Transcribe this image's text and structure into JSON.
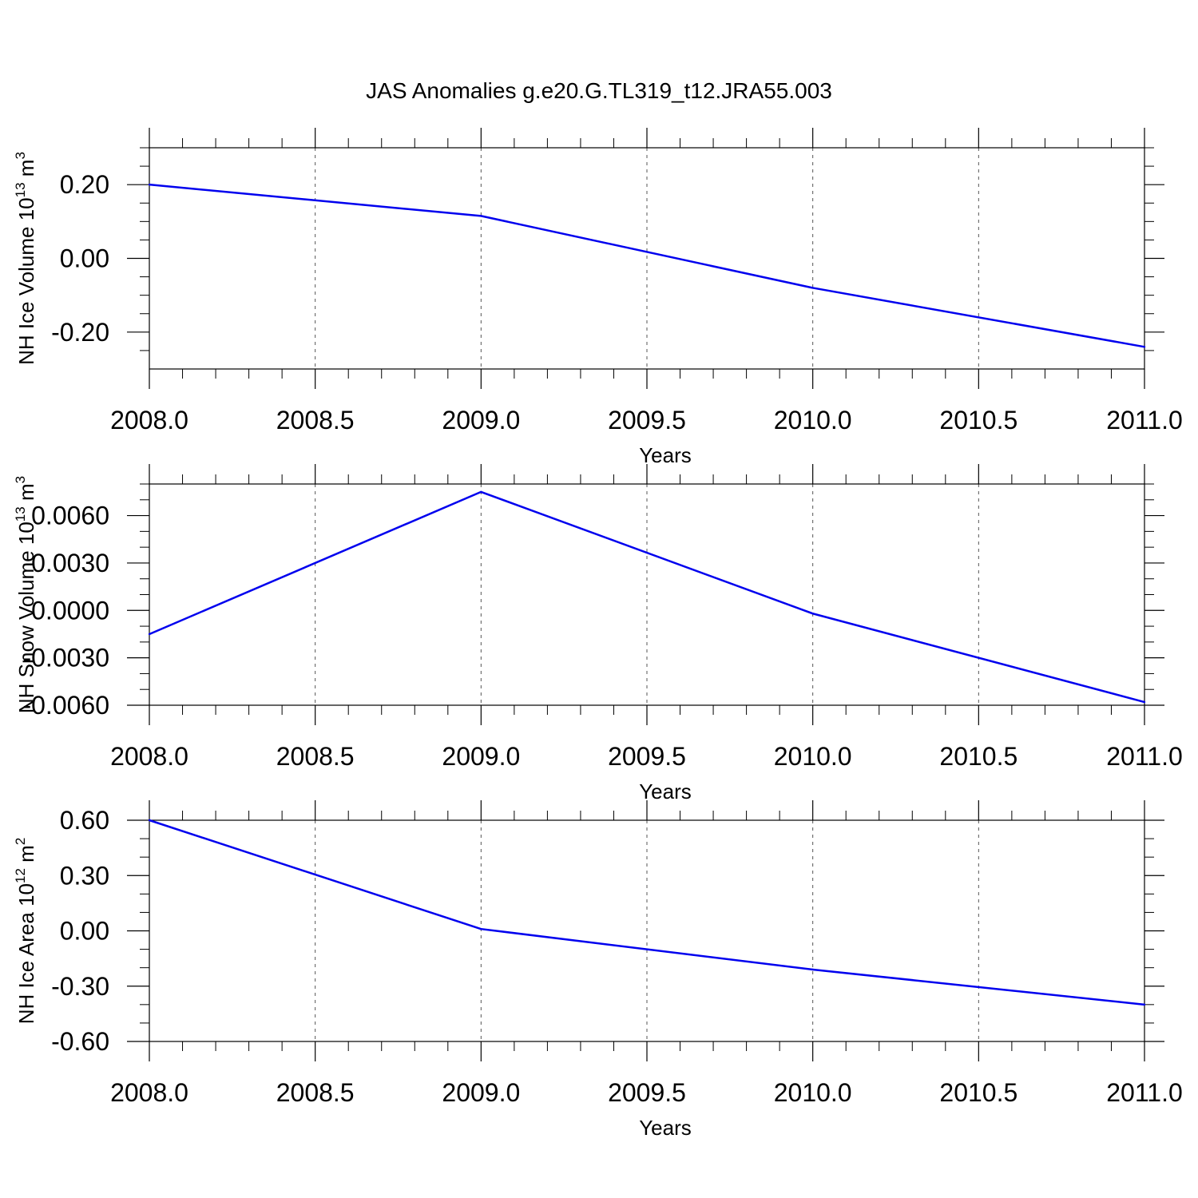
{
  "chart_data": {
    "title": "JAS Anomalies g.e20.G.TL319_t12.JRA55.003",
    "series_color": "#0000ee",
    "panels": [
      {
        "type": "line",
        "xlabel": "Years",
        "ylabel": {
          "main": "NH Ice Volume 10",
          "sup": "13",
          "unit": " m",
          "unit_sup": "3"
        },
        "x": [
          2008,
          2009,
          2010,
          2011
        ],
        "y": [
          0.2,
          0.115,
          -0.08,
          -0.24
        ],
        "xlim": [
          2008,
          2011
        ],
        "ylim": [
          -0.3,
          0.3
        ],
        "xticks": [
          2008.0,
          2008.5,
          2009.0,
          2009.5,
          2010.0,
          2010.5,
          2011.0
        ],
        "xtick_labels": [
          "2008.0",
          "2008.5",
          "2009.0",
          "2009.5",
          "2010.0",
          "2010.5",
          "2011.0"
        ],
        "yticks": [
          -0.2,
          0.0,
          0.2
        ],
        "ytick_labels": [
          "-0.20",
          "0.00",
          "0.20"
        ],
        "yminor_step": 0.05
      },
      {
        "type": "line",
        "xlabel": "Years",
        "ylabel": {
          "main": "NH Snow Volume 10",
          "sup": "13",
          "unit": " m",
          "unit_sup": "3"
        },
        "x": [
          2008,
          2009,
          2010,
          2011
        ],
        "y": [
          -0.0015,
          0.0075,
          -0.0002,
          -0.0058
        ],
        "xlim": [
          2008,
          2011
        ],
        "ylim": [
          -0.006,
          0.008
        ],
        "xticks": [
          2008.0,
          2008.5,
          2009.0,
          2009.5,
          2010.0,
          2010.5,
          2011.0
        ],
        "xtick_labels": [
          "2008.0",
          "2008.5",
          "2009.0",
          "2009.5",
          "2010.0",
          "2010.5",
          "2011.0"
        ],
        "yticks": [
          -0.006,
          -0.003,
          0.0,
          0.003,
          0.006
        ],
        "ytick_labels": [
          "-0.0060",
          "-0.0030",
          "0.0000",
          "0.0030",
          "0.0060"
        ],
        "yminor_step": 0.001
      },
      {
        "type": "line",
        "xlabel": "Years",
        "ylabel": {
          "main": "NH Ice Area 10",
          "sup": "12",
          "unit": " m",
          "unit_sup": "2"
        },
        "x": [
          2008,
          2009,
          2010,
          2011
        ],
        "y": [
          0.6,
          0.01,
          -0.21,
          -0.4
        ],
        "xlim": [
          2008,
          2011
        ],
        "ylim": [
          -0.6,
          0.6
        ],
        "xticks": [
          2008.0,
          2008.5,
          2009.0,
          2009.5,
          2010.0,
          2010.5,
          2011.0
        ],
        "xtick_labels": [
          "2008.0",
          "2008.5",
          "2009.0",
          "2009.5",
          "2010.0",
          "2010.5",
          "2011.0"
        ],
        "yticks": [
          -0.6,
          -0.3,
          0.0,
          0.3,
          0.6
        ],
        "ytick_labels": [
          "-0.60",
          "-0.30",
          "0.00",
          "0.30",
          "0.60"
        ],
        "yminor_step": 0.1
      }
    ]
  }
}
